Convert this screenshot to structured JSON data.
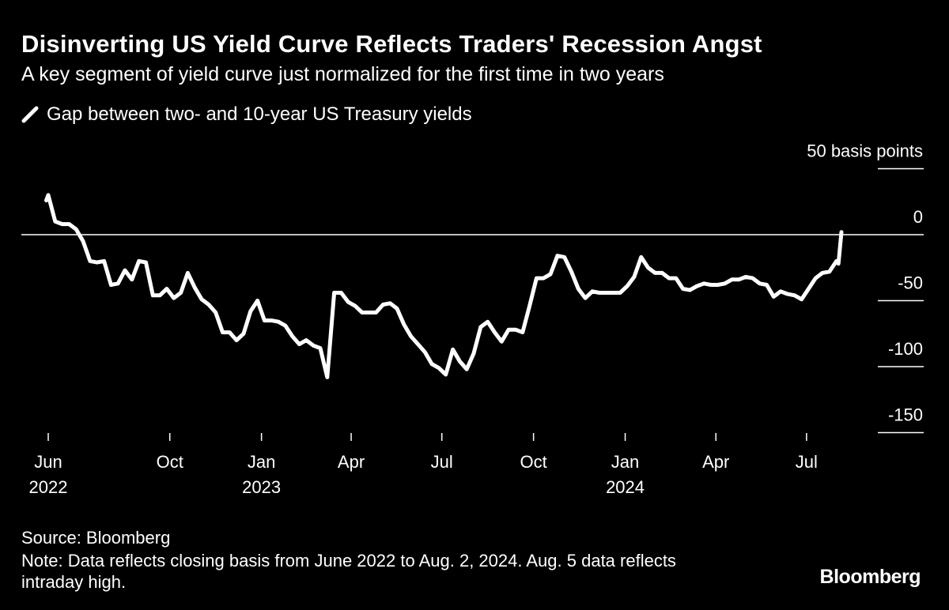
{
  "chart_data": {
    "type": "line",
    "title": "Disinverting US Yield Curve Reflects Traders' Recession Angst",
    "subtitle": "A key segment of yield curve just normalized for the first time in two years",
    "ylabel": "50 basis points",
    "ylim": [
      -150,
      50
    ],
    "yticks": [
      {
        "value": 50,
        "label": "50 basis points"
      },
      {
        "value": 0,
        "label": "0"
      },
      {
        "value": -50,
        "label": "-50"
      },
      {
        "value": -100,
        "label": "-100"
      },
      {
        "value": -150,
        "label": "-150"
      }
    ],
    "xticks": [
      {
        "date": "2022-06-01",
        "label": "Jun",
        "year": "2022"
      },
      {
        "date": "2022-10-01",
        "label": "Oct",
        "year": ""
      },
      {
        "date": "2023-01-01",
        "label": "Jan",
        "year": "2023"
      },
      {
        "date": "2023-04-01",
        "label": "Apr",
        "year": ""
      },
      {
        "date": "2023-07-01",
        "label": "Jul",
        "year": ""
      },
      {
        "date": "2023-10-01",
        "label": "Oct",
        "year": ""
      },
      {
        "date": "2024-01-01",
        "label": "Jan",
        "year": "2024"
      },
      {
        "date": "2024-04-01",
        "label": "Apr",
        "year": ""
      },
      {
        "date": "2024-07-01",
        "label": "Jul",
        "year": ""
      }
    ],
    "grid": false,
    "zero_line": true,
    "legend_placement": "top-left",
    "line_color": "#ffffff",
    "series": [
      {
        "name": "Gap between two- and 10-year US Treasury yields",
        "points": [
          [
            "2022-05-30",
            26
          ],
          [
            "2022-06-01",
            30
          ],
          [
            "2022-06-08",
            10
          ],
          [
            "2022-06-15",
            8
          ],
          [
            "2022-06-22",
            8
          ],
          [
            "2022-06-29",
            4
          ],
          [
            "2022-07-06",
            -5
          ],
          [
            "2022-07-13",
            -20
          ],
          [
            "2022-07-20",
            -21
          ],
          [
            "2022-07-27",
            -20
          ],
          [
            "2022-08-03",
            -38
          ],
          [
            "2022-08-10",
            -37
          ],
          [
            "2022-08-17",
            -27
          ],
          [
            "2022-08-24",
            -34
          ],
          [
            "2022-08-31",
            -20
          ],
          [
            "2022-09-07",
            -21
          ],
          [
            "2022-09-14",
            -46
          ],
          [
            "2022-09-21",
            -46
          ],
          [
            "2022-09-28",
            -41
          ],
          [
            "2022-10-05",
            -48
          ],
          [
            "2022-10-12",
            -44
          ],
          [
            "2022-10-19",
            -29
          ],
          [
            "2022-10-26",
            -40
          ],
          [
            "2022-11-02",
            -49
          ],
          [
            "2022-11-09",
            -53
          ],
          [
            "2022-11-16",
            -59
          ],
          [
            "2022-11-23",
            -74
          ],
          [
            "2022-11-30",
            -74
          ],
          [
            "2022-12-07",
            -80
          ],
          [
            "2022-12-14",
            -75
          ],
          [
            "2022-12-21",
            -58
          ],
          [
            "2022-12-28",
            -50
          ],
          [
            "2023-01-04",
            -65
          ],
          [
            "2023-01-11",
            -65
          ],
          [
            "2023-01-18",
            -66
          ],
          [
            "2023-01-25",
            -69
          ],
          [
            "2023-02-01",
            -77
          ],
          [
            "2023-02-08",
            -83
          ],
          [
            "2023-02-15",
            -80
          ],
          [
            "2023-02-22",
            -84
          ],
          [
            "2023-03-01",
            -86
          ],
          [
            "2023-03-08",
            -108
          ],
          [
            "2023-03-15",
            -44
          ],
          [
            "2023-03-22",
            -44
          ],
          [
            "2023-03-29",
            -51
          ],
          [
            "2023-04-05",
            -54
          ],
          [
            "2023-04-12",
            -59
          ],
          [
            "2023-04-19",
            -59
          ],
          [
            "2023-04-26",
            -59
          ],
          [
            "2023-05-03",
            -53
          ],
          [
            "2023-05-10",
            -52
          ],
          [
            "2023-05-17",
            -56
          ],
          [
            "2023-05-24",
            -68
          ],
          [
            "2023-05-31",
            -77
          ],
          [
            "2023-06-07",
            -83
          ],
          [
            "2023-06-14",
            -89
          ],
          [
            "2023-06-21",
            -98
          ],
          [
            "2023-06-28",
            -101
          ],
          [
            "2023-07-05",
            -106
          ],
          [
            "2023-07-12",
            -87
          ],
          [
            "2023-07-19",
            -96
          ],
          [
            "2023-07-26",
            -102
          ],
          [
            "2023-08-02",
            -90
          ],
          [
            "2023-08-09",
            -70
          ],
          [
            "2023-08-16",
            -66
          ],
          [
            "2023-08-23",
            -74
          ],
          [
            "2023-08-30",
            -81
          ],
          [
            "2023-09-06",
            -72
          ],
          [
            "2023-09-13",
            -72
          ],
          [
            "2023-09-20",
            -74
          ],
          [
            "2023-09-27",
            -54
          ],
          [
            "2023-10-04",
            -33
          ],
          [
            "2023-10-11",
            -33
          ],
          [
            "2023-10-18",
            -30
          ],
          [
            "2023-10-25",
            -16
          ],
          [
            "2023-11-01",
            -17
          ],
          [
            "2023-11-08",
            -28
          ],
          [
            "2023-11-15",
            -41
          ],
          [
            "2023-11-22",
            -48
          ],
          [
            "2023-11-29",
            -43
          ],
          [
            "2023-12-06",
            -44
          ],
          [
            "2023-12-13",
            -44
          ],
          [
            "2023-12-20",
            -44
          ],
          [
            "2023-12-27",
            -44
          ],
          [
            "2024-01-03",
            -39
          ],
          [
            "2024-01-10",
            -32
          ],
          [
            "2024-01-17",
            -17
          ],
          [
            "2024-01-24",
            -25
          ],
          [
            "2024-01-31",
            -29
          ],
          [
            "2024-02-07",
            -29
          ],
          [
            "2024-02-14",
            -33
          ],
          [
            "2024-02-21",
            -33
          ],
          [
            "2024-02-28",
            -41
          ],
          [
            "2024-03-06",
            -42
          ],
          [
            "2024-03-13",
            -39
          ],
          [
            "2024-03-20",
            -37
          ],
          [
            "2024-03-27",
            -38
          ],
          [
            "2024-04-03",
            -38
          ],
          [
            "2024-04-10",
            -37
          ],
          [
            "2024-04-17",
            -34
          ],
          [
            "2024-04-24",
            -34
          ],
          [
            "2024-05-01",
            -32
          ],
          [
            "2024-05-08",
            -33
          ],
          [
            "2024-05-15",
            -37
          ],
          [
            "2024-05-22",
            -38
          ],
          [
            "2024-05-29",
            -47
          ],
          [
            "2024-06-05",
            -43
          ],
          [
            "2024-06-12",
            -45
          ],
          [
            "2024-06-19",
            -46
          ],
          [
            "2024-06-26",
            -49
          ],
          [
            "2024-07-03",
            -41
          ],
          [
            "2024-07-10",
            -33
          ],
          [
            "2024-07-17",
            -29
          ],
          [
            "2024-07-24",
            -28
          ],
          [
            "2024-07-31",
            -20
          ],
          [
            "2024-08-02",
            -22
          ],
          [
            "2024-08-05",
            2
          ]
        ]
      }
    ]
  },
  "header": {
    "title": "Disinverting US Yield Curve Reflects Traders' Recession Angst",
    "subtitle": "A key segment of yield curve just normalized for the first time in two years",
    "legend_label": "Gap between two- and 10-year US Treasury yields",
    "legend_icon": "slash-line-icon"
  },
  "footer": {
    "source": "Source: Bloomberg",
    "note": "Note: Data reflects closing basis from June 2022 to Aug. 2, 2024. Aug. 5 data reflects intraday high.",
    "logo": "Bloomberg"
  },
  "colors": {
    "background": "#000000",
    "foreground": "#ffffff"
  }
}
